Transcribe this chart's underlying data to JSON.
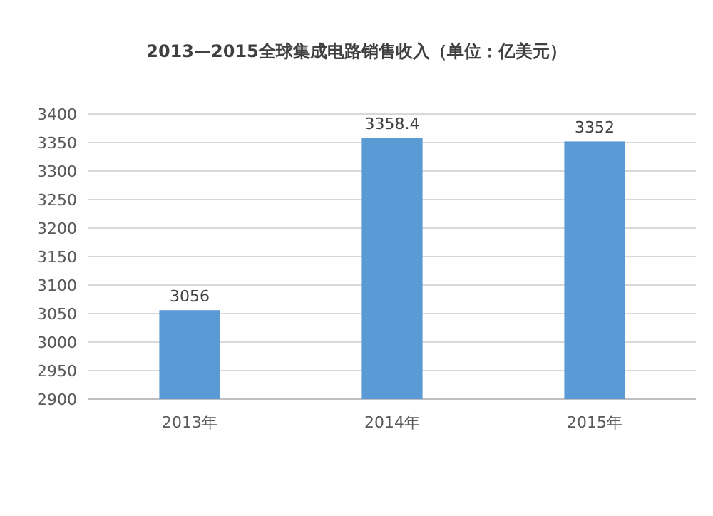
{
  "chart_data": {
    "type": "bar",
    "title": "2013—2015全球集成电路销售收入（单位：亿美元）",
    "categories": [
      "2013年",
      "2014年",
      "2015年"
    ],
    "values": [
      3056,
      3358.4,
      3352
    ],
    "color": "#5b9bd5",
    "ylim": [
      2900,
      3400
    ],
    "yticks": [
      2900,
      2950,
      3000,
      3050,
      3100,
      3150,
      3200,
      3250,
      3300,
      3350,
      3400
    ],
    "grid": "y",
    "data_labels": true
  }
}
